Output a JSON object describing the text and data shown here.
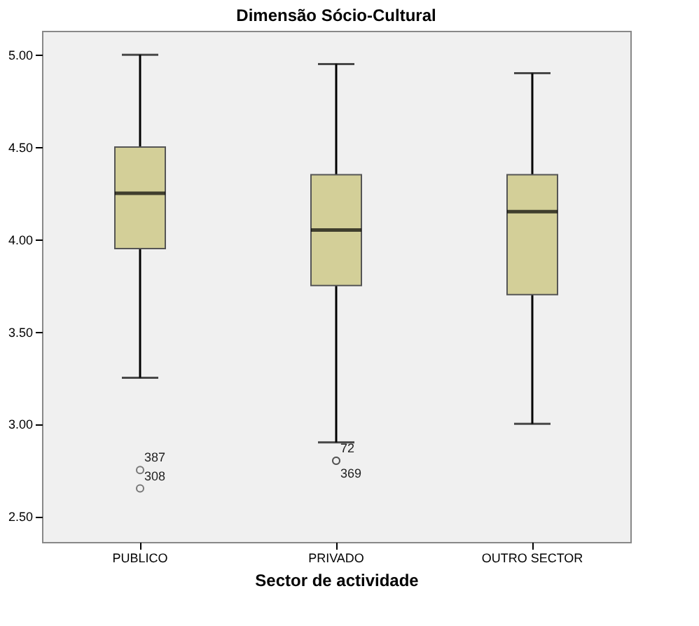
{
  "chart_data": {
    "type": "box",
    "title": "Dimensão Sócio-Cultural",
    "xlabel": "Sector de actividade",
    "categories": [
      "PUBLICO",
      "PRIVADO",
      "OUTRO SECTOR"
    ],
    "boxes": [
      {
        "low": 3.25,
        "q1": 3.95,
        "median": 4.25,
        "q3": 4.5,
        "high": 5.0,
        "outliers": [
          2.75,
          2.65
        ]
      },
      {
        "low": 2.9,
        "q1": 3.75,
        "median": 4.05,
        "q3": 4.35,
        "high": 4.95,
        "outliers": [
          2.8,
          2.8
        ]
      },
      {
        "low": 3.0,
        "q1": 3.7,
        "median": 4.15,
        "q3": 4.35,
        "high": 4.9
      }
    ],
    "color": "#d3cf98",
    "ylim": [
      2.36,
      5.13
    ],
    "yticks": [
      {
        "value": 2.5,
        "label": "2.50"
      },
      {
        "value": 3.0,
        "label": "3.00"
      },
      {
        "value": 3.5,
        "label": "3.50"
      },
      {
        "value": 4.0,
        "label": "4.00"
      },
      {
        "value": 4.5,
        "label": "4.50"
      },
      {
        "value": 5.0,
        "label": "5.00"
      }
    ],
    "grid": false,
    "annotations": [
      "387",
      "308",
      "72",
      "369"
    ]
  }
}
